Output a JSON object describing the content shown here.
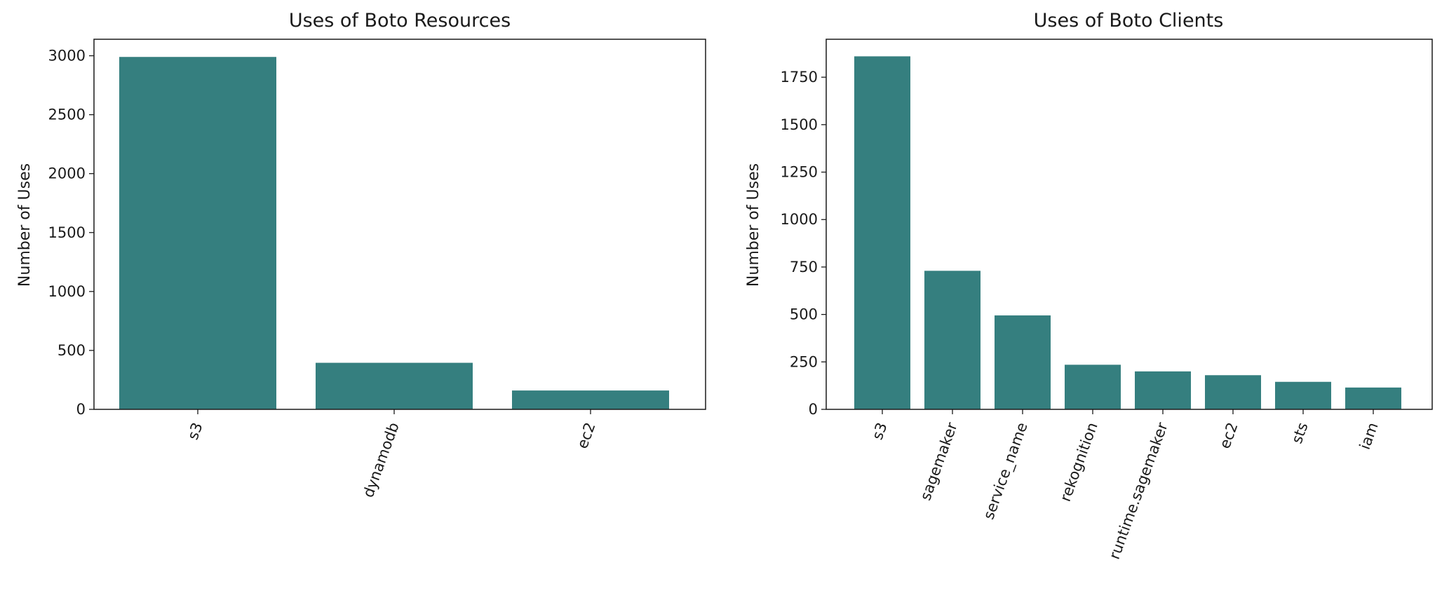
{
  "colors": {
    "bar": "#357f7f",
    "axis": "#1a1a1a"
  },
  "chart_data": [
    {
      "type": "bar",
      "title": "Uses of Boto Resources",
      "xlabel": "",
      "ylabel": "Number of Uses",
      "categories": [
        "s3",
        "dynamodb",
        "ec2"
      ],
      "values": [
        2990,
        395,
        160
      ],
      "ylim": [
        0,
        3140
      ],
      "yticks": [
        0,
        500,
        1000,
        1500,
        2000,
        2500,
        3000
      ],
      "xtick_rotation": 70,
      "grid": false,
      "legend": "none"
    },
    {
      "type": "bar",
      "title": "Uses of Boto Clients",
      "xlabel": "",
      "ylabel": "Number of Uses",
      "categories": [
        "s3",
        "sagemaker",
        "service_name",
        "rekognition",
        "runtime.sagemaker",
        "ec2",
        "sts",
        "iam"
      ],
      "values": [
        1860,
        730,
        495,
        235,
        200,
        180,
        145,
        115
      ],
      "ylim": [
        0,
        1950
      ],
      "yticks": [
        0,
        250,
        500,
        750,
        1000,
        1250,
        1500,
        1750
      ],
      "xtick_rotation": 70,
      "grid": false,
      "legend": "none"
    }
  ]
}
